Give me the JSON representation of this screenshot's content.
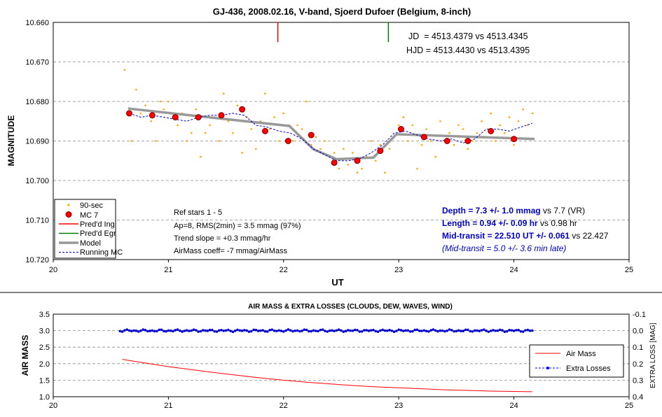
{
  "chart_data": [
    {
      "type": "scatter",
      "title": "GJ-436, 2008.02.16, V-band, Sjoerd Dufoer (Belgium, 8-inch)",
      "xlabel": "UT",
      "ylabel": "MAGNITUDE",
      "xlim": [
        20,
        25
      ],
      "ylim": [
        10.72,
        10.66
      ],
      "y_inverted": true,
      "grid": "horizontal dashed",
      "x_ticks": [
        "20",
        "21",
        "22",
        "23",
        "24",
        "25"
      ],
      "y_ticks": [
        "10.660",
        "10.670",
        "10.680",
        "10.690",
        "10.700",
        "10.710",
        "10.720"
      ],
      "predicted_ingress_ut": 21.95,
      "predicted_egress_ut": 22.91,
      "info_lines": [
        "JD  = 4513.4379 vs 4513.4345",
        "HJD = 4513.4430 vs 4513.4395"
      ],
      "notes": [
        "Ref stars 1 - 5",
        "Ap=8, RMS(2min) = 3.5 mmag (97%)",
        "Trend slope = +0.3 mmag/hr",
        "AirMass coeff= -7 mmag/AirMass"
      ],
      "results": [
        {
          "bold": "Depth = 7.3 +/- 1.0 mmag",
          "rest": " vs 7.7 (VR)"
        },
        {
          "bold": "Length = 0.94 +/- 0.09 hr",
          "rest": " vs 0.98 hr"
        },
        {
          "bold": "Mid-transit = 22.510 UT +/- 0.061",
          "rest": " vs 22.427"
        }
      ],
      "late_note": "(Mid-transit = 5.0 +/- 3.6 min late)",
      "legend_placement": "bottom-left",
      "series": [
        {
          "name": "90-sec",
          "style": "orange dots",
          "color": "#FFA500",
          "points": [
            [
              20.62,
              10.672
            ],
            [
              20.68,
              10.69
            ],
            [
              20.72,
              10.677
            ],
            [
              20.76,
              10.683
            ],
            [
              20.8,
              10.681
            ],
            [
              20.85,
              10.685
            ],
            [
              20.89,
              10.69
            ],
            [
              20.93,
              10.68
            ],
            [
              20.96,
              10.682
            ],
            [
              21.0,
              10.68
            ],
            [
              21.04,
              10.684
            ],
            [
              21.08,
              10.686
            ],
            [
              21.12,
              10.683
            ],
            [
              21.16,
              10.69
            ],
            [
              21.2,
              10.688
            ],
            [
              21.24,
              10.682
            ],
            [
              21.28,
              10.694
            ],
            [
              21.32,
              10.688
            ],
            [
              21.36,
              10.686
            ],
            [
              21.4,
              10.684
            ],
            [
              21.44,
              10.69
            ],
            [
              21.48,
              10.678
            ],
            [
              21.52,
              10.685
            ],
            [
              21.56,
              10.688
            ],
            [
              21.6,
              10.681
            ],
            [
              21.64,
              10.693
            ],
            [
              21.68,
              10.684
            ],
            [
              21.72,
              10.687
            ],
            [
              21.76,
              10.692
            ],
            [
              21.8,
              10.685
            ],
            [
              21.84,
              10.678
            ],
            [
              21.88,
              10.687
            ],
            [
              21.92,
              10.684
            ],
            [
              21.96,
              10.69
            ],
            [
              22.0,
              10.683
            ],
            [
              22.04,
              10.686
            ],
            [
              22.08,
              10.69
            ],
            [
              22.12,
              10.686
            ],
            [
              22.16,
              10.687
            ],
            [
              22.2,
              10.68
            ],
            [
              22.24,
              10.691
            ],
            [
              22.28,
              10.689
            ],
            [
              22.32,
              10.692
            ],
            [
              22.36,
              10.69
            ],
            [
              22.4,
              10.694
            ],
            [
              22.44,
              10.693
            ],
            [
              22.48,
              10.697
            ],
            [
              22.52,
              10.692
            ],
            [
              22.56,
              10.696
            ],
            [
              22.6,
              10.693
            ],
            [
              22.64,
              10.698
            ],
            [
              22.68,
              10.697
            ],
            [
              22.72,
              10.694
            ],
            [
              22.76,
              10.69
            ],
            [
              22.8,
              10.695
            ],
            [
              22.84,
              10.691
            ],
            [
              22.88,
              10.698
            ],
            [
              22.92,
              10.692
            ],
            [
              22.96,
              10.689
            ],
            [
              23.0,
              10.686
            ],
            [
              23.04,
              10.684
            ],
            [
              23.08,
              10.69
            ],
            [
              23.12,
              10.686
            ],
            [
              23.16,
              10.697
            ],
            [
              23.2,
              10.691
            ],
            [
              23.24,
              10.687
            ],
            [
              23.28,
              10.69
            ],
            [
              23.32,
              10.694
            ],
            [
              23.36,
              10.685
            ],
            [
              23.4,
              10.69
            ],
            [
              23.44,
              10.688
            ],
            [
              23.48,
              10.691
            ],
            [
              23.52,
              10.686
            ],
            [
              23.56,
              10.687
            ],
            [
              23.6,
              10.692
            ],
            [
              23.64,
              10.69
            ],
            [
              23.68,
              10.688
            ],
            [
              23.72,
              10.685
            ],
            [
              23.76,
              10.689
            ],
            [
              23.8,
              10.683
            ],
            [
              23.84,
              10.69
            ],
            [
              23.88,
              10.686
            ],
            [
              23.92,
              10.688
            ],
            [
              23.96,
              10.684
            ],
            [
              24.0,
              10.691
            ],
            [
              24.04,
              10.685
            ],
            [
              24.08,
              10.682
            ],
            [
              24.12,
              10.686
            ],
            [
              24.16,
              10.683
            ]
          ]
        },
        {
          "name": "MC 7",
          "style": "red circles",
          "color": "#FF0000",
          "points": [
            [
              20.66,
              10.683
            ],
            [
              20.86,
              10.6835
            ],
            [
              21.06,
              10.684
            ],
            [
              21.26,
              10.684
            ],
            [
              21.46,
              10.6835
            ],
            [
              21.64,
              10.682
            ],
            [
              21.84,
              10.6875
            ],
            [
              22.04,
              10.69
            ],
            [
              22.24,
              10.6885
            ],
            [
              22.44,
              10.6955
            ],
            [
              22.64,
              10.695
            ],
            [
              22.84,
              10.6925
            ],
            [
              23.02,
              10.687
            ],
            [
              23.22,
              10.689
            ],
            [
              23.42,
              10.69
            ],
            [
              23.6,
              10.69
            ],
            [
              23.8,
              10.6875
            ],
            [
              24.0,
              10.6895
            ]
          ]
        },
        {
          "name": "Pred'd Ing",
          "style": "red line",
          "color": "#FF0000"
        },
        {
          "name": "Pred'd Egr",
          "style": "green line",
          "color": "#008000"
        },
        {
          "name": "Model",
          "style": "thick gray line",
          "color": "#999999",
          "points": [
            [
              20.65,
              10.6818
            ],
            [
              22.05,
              10.6862
            ],
            [
              22.26,
              10.6921
            ],
            [
              22.46,
              10.6946
            ],
            [
              22.78,
              10.6942
            ],
            [
              22.98,
              10.6883
            ],
            [
              24.18,
              10.6895
            ]
          ]
        },
        {
          "name": "Running MC",
          "style": "dashed blue line",
          "color": "#0000CC",
          "points": [
            [
              20.66,
              10.683
            ],
            [
              20.76,
              10.684
            ],
            [
              20.86,
              10.6835
            ],
            [
              20.96,
              10.684
            ],
            [
              21.06,
              10.6845
            ],
            [
              21.16,
              10.685
            ],
            [
              21.26,
              10.684
            ],
            [
              21.36,
              10.6835
            ],
            [
              21.46,
              10.6835
            ],
            [
              21.56,
              10.683
            ],
            [
              21.66,
              10.6835
            ],
            [
              21.76,
              10.686
            ],
            [
              21.86,
              10.6865
            ],
            [
              21.96,
              10.6875
            ],
            [
              22.06,
              10.688
            ],
            [
              22.16,
              10.6895
            ],
            [
              22.26,
              10.692
            ],
            [
              22.36,
              10.6935
            ],
            [
              22.46,
              10.695
            ],
            [
              22.56,
              10.695
            ],
            [
              22.66,
              10.6945
            ],
            [
              22.76,
              10.693
            ],
            [
              22.86,
              10.691
            ],
            [
              22.96,
              10.688
            ],
            [
              23.06,
              10.6875
            ],
            [
              23.16,
              10.6885
            ],
            [
              23.26,
              10.6895
            ],
            [
              23.36,
              10.69
            ],
            [
              23.46,
              10.6895
            ],
            [
              23.56,
              10.6905
            ],
            [
              23.66,
              10.6895
            ],
            [
              23.76,
              10.687
            ],
            [
              23.86,
              10.687
            ],
            [
              23.96,
              10.6875
            ],
            [
              24.06,
              10.6865
            ],
            [
              24.16,
              10.6855
            ]
          ]
        }
      ]
    },
    {
      "type": "line",
      "title": "AIR MASS & EXTRA LOSSES (CLOUDS, DEW, WAVES, WIND)",
      "xlabel": "",
      "ylabel": "AIR MASS",
      "y2label": "EXTRA LOSS [MAG]",
      "xlim": [
        20,
        25
      ],
      "ylim": [
        1.0,
        3.5
      ],
      "y2lim": [
        0.4,
        -0.1
      ],
      "x_ticks": [
        "20",
        "21",
        "22",
        "23",
        "24",
        "25"
      ],
      "y_ticks": [
        "1.0",
        "1.5",
        "2.0",
        "2.5",
        "3.0",
        "3.5"
      ],
      "y2_ticks": [
        "0.4",
        "0.3",
        "0.2",
        "0.1",
        "0.0",
        "-0.1"
      ],
      "grid": "horizontal dashed",
      "legend_placement": "right",
      "series": [
        {
          "name": "Air Mass",
          "style": "red line",
          "color": "#FF0000",
          "points": [
            [
              20.6,
              2.13
            ],
            [
              20.8,
              2.02
            ],
            [
              21.0,
              1.91
            ],
            [
              21.2,
              1.82
            ],
            [
              21.4,
              1.73
            ],
            [
              21.6,
              1.65
            ],
            [
              21.8,
              1.57
            ],
            [
              22.0,
              1.5
            ],
            [
              22.2,
              1.44
            ],
            [
              22.4,
              1.39
            ],
            [
              22.6,
              1.34
            ],
            [
              22.8,
              1.3
            ],
            [
              23.0,
              1.27
            ],
            [
              23.2,
              1.24
            ],
            [
              23.4,
              1.21
            ],
            [
              23.6,
              1.19
            ],
            [
              23.8,
              1.17
            ],
            [
              24.0,
              1.16
            ],
            [
              24.16,
              1.15
            ]
          ]
        },
        {
          "name": "Extra Losses",
          "style": "dashed blue with dots",
          "color": "#0000CC",
          "start": 20.58,
          "end": 24.16,
          "step": 0.02,
          "level_mag": 0.0
        }
      ]
    }
  ]
}
